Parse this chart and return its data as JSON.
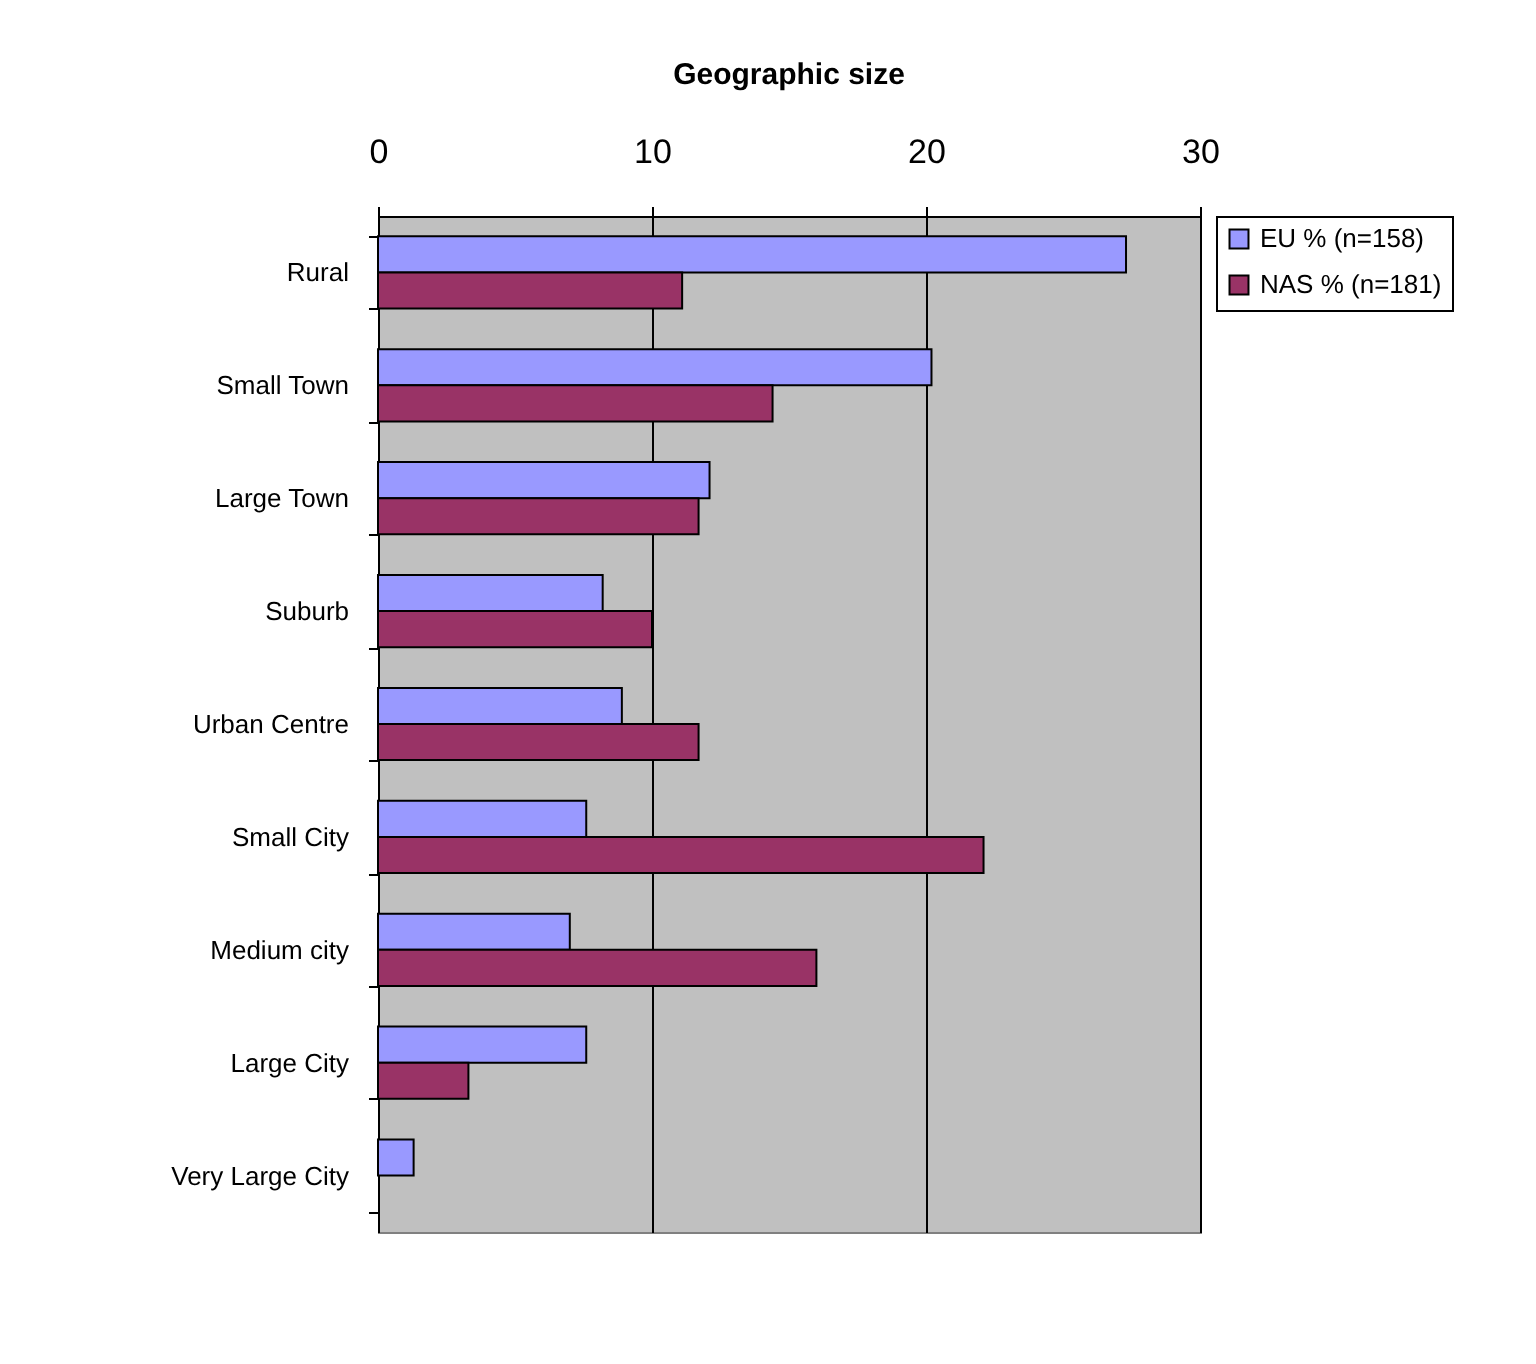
{
  "chart_data": {
    "type": "bar",
    "orientation": "horizontal",
    "title": "Geographic size",
    "categories": [
      "Rural",
      "Small Town",
      "Large Town",
      "Suburb",
      "Urban Centre",
      "Small City",
      "Medium city",
      "Large City",
      "Very Large City"
    ],
    "series": [
      {
        "name": "EU % (n=158)",
        "color": "#9999ff",
        "values": [
          27.3,
          20.2,
          12.1,
          8.2,
          8.9,
          7.6,
          7.0,
          7.6,
          1.3
        ]
      },
      {
        "name": "NAS % (n=181)",
        "color": "#993366",
        "values": [
          11.1,
          14.4,
          11.7,
          10.0,
          11.7,
          22.1,
          16.0,
          3.3,
          null
        ]
      }
    ],
    "xlim": [
      0,
      30
    ],
    "xticks": [
      0,
      10,
      20,
      30
    ],
    "grid": "x",
    "legend": "right"
  }
}
